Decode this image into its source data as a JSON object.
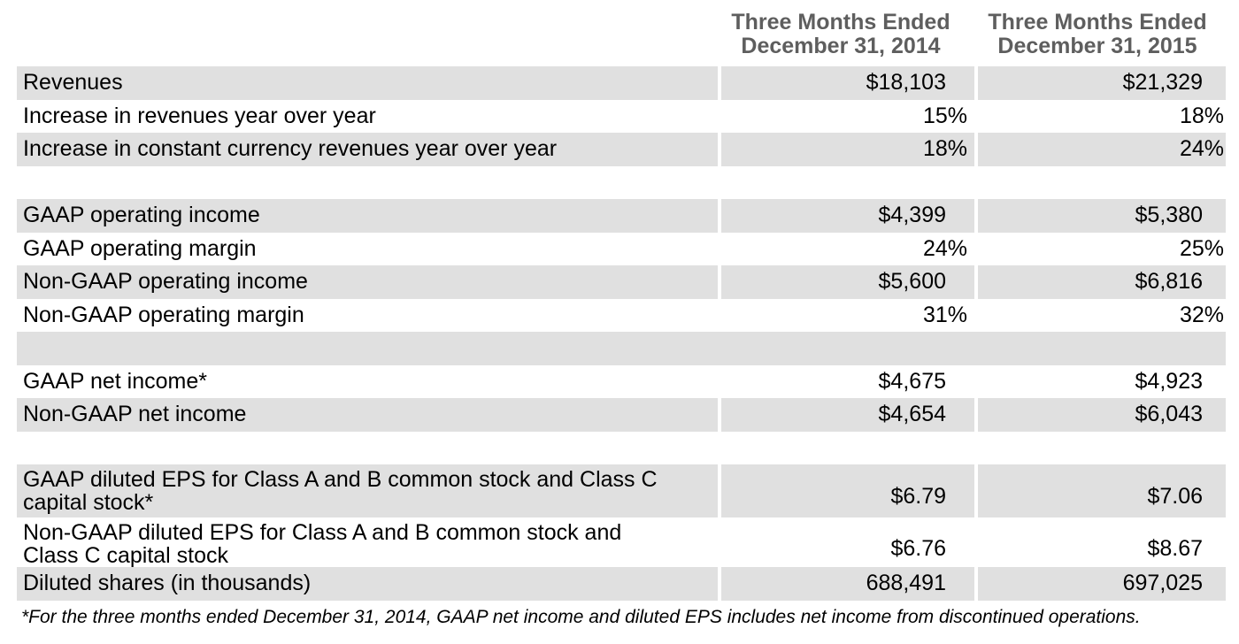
{
  "header": {
    "col1_line1": "Three Months Ended",
    "col1_line2": "December 31, 2014",
    "col2_line1": "Three Months Ended",
    "col2_line2": "December 31, 2015"
  },
  "rows": [
    {
      "label": "Revenues",
      "v1": "$18,103",
      "v2": "$21,329"
    },
    {
      "label": "Increase in revenues year over year",
      "v1": "15%",
      "v2": "18%"
    },
    {
      "label": "Increase in constant currency revenues year over year",
      "v1": "18%",
      "v2": "24%"
    },
    {
      "label": "GAAP operating income",
      "v1": "$4,399",
      "v2": "$5,380"
    },
    {
      "label": "GAAP operating margin",
      "v1": "24%",
      "v2": "25%"
    },
    {
      "label": "Non-GAAP operating income",
      "v1": "$5,600",
      "v2": "$6,816"
    },
    {
      "label": "Non-GAAP operating margin",
      "v1": "31%",
      "v2": "32%"
    },
    {
      "label": "GAAP net income*",
      "v1": "$4,675",
      "v2": "$4,923"
    },
    {
      "label": "Non-GAAP net income",
      "v1": "$4,654",
      "v2": "$6,043"
    },
    {
      "label_line1": "GAAP diluted EPS for Class A and B common stock and Class C",
      "label_line2": "capital stock*",
      "v1": "$6.79",
      "v2": "$7.06"
    },
    {
      "label_line1": "Non-GAAP diluted EPS for Class A and B common stock and",
      "label_line2": "Class C capital stock",
      "v1": "$6.76",
      "v2": "$8.67"
    },
    {
      "label": "Diluted shares (in thousands)",
      "v1": "688,491",
      "v2": "697,025"
    }
  ],
  "footnote": "*For the three months ended December 31, 2014, GAAP net income and diluted EPS includes net income from discontinued operations."
}
